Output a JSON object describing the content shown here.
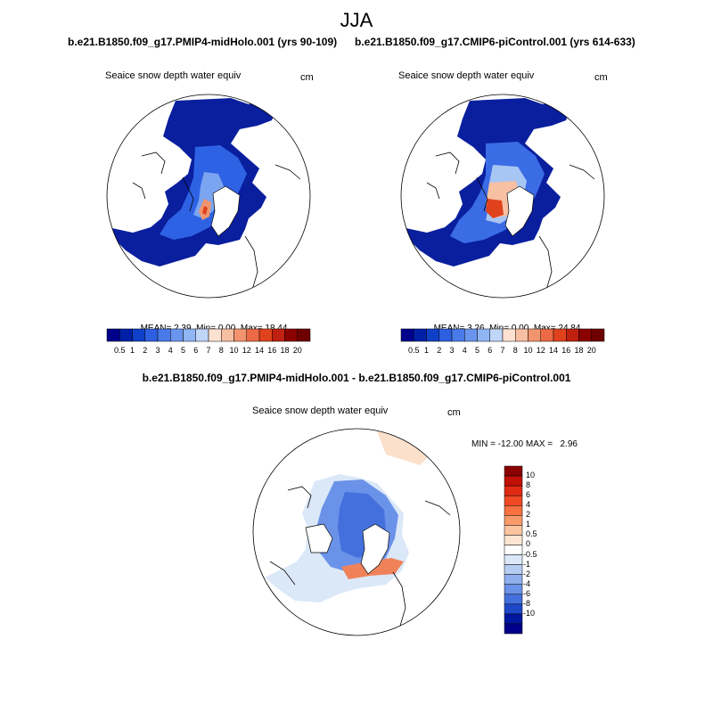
{
  "chart_data": [
    {
      "type": "heatmap",
      "projection": "polar-stereographic",
      "season": "JJA",
      "run": "b.e21.B1850.f09_g17.PMIP4-midHolo.001 (yrs 90-109)",
      "variable": "Seaice snow depth water equiv",
      "units": "cm",
      "stats": {
        "mean": "2.39",
        "min": "0.00",
        "max": "18.44"
      },
      "colorbar": {
        "ticks": [
          "0.5",
          "1",
          "2",
          "3",
          "4",
          "5",
          "6",
          "7",
          "8",
          "10",
          "12",
          "14",
          "16",
          "18",
          "20"
        ],
        "colors": [
          "#00008b",
          "#0020a8",
          "#1040c8",
          "#2d5fe0",
          "#4a7ae8",
          "#6a95ee",
          "#90b5f3",
          "#c0d6f7",
          "#fbe1cf",
          "#f7bfa2",
          "#f2956e",
          "#ec6a45",
          "#e0421e",
          "#c02010",
          "#8b0000",
          "#6e0000"
        ]
      }
    },
    {
      "type": "heatmap",
      "projection": "polar-stereographic",
      "season": "JJA",
      "run": "b.e21.B1850.f09_g17.CMIP6-piControl.001 (yrs 614-633)",
      "variable": "Seaice snow depth water equiv",
      "units": "cm",
      "stats": {
        "mean": "3.26",
        "min": "0.00",
        "max": "24.84"
      },
      "colorbar": {
        "ticks": [
          "0.5",
          "1",
          "2",
          "3",
          "4",
          "5",
          "6",
          "7",
          "8",
          "10",
          "12",
          "14",
          "16",
          "18",
          "20"
        ],
        "colors": [
          "#00008b",
          "#0020a8",
          "#1040c8",
          "#2d5fe0",
          "#4a7ae8",
          "#6a95ee",
          "#90b5f3",
          "#c0d6f7",
          "#fbe1cf",
          "#f7bfa2",
          "#f2956e",
          "#ec6a45",
          "#e0421e",
          "#c02010",
          "#8b0000",
          "#6e0000"
        ]
      }
    },
    {
      "type": "heatmap",
      "projection": "polar-stereographic",
      "title": "b.e21.B1850.f09_g17.PMIP4-midHolo.001 - b.e21.B1850.f09_g17.CMIP6-piControl.001",
      "variable": "Seaice snow depth water equiv",
      "units": "cm",
      "stats_text": "MIN = -12.00 MAX =   2.96",
      "colorbar": {
        "ticks": [
          "10",
          "8",
          "6",
          "4",
          "2",
          "1",
          "0.5",
          "0",
          "-0.5",
          "-1",
          "-2",
          "-4",
          "-6",
          "-8",
          "-10"
        ],
        "colors": [
          "#8b0000",
          "#c01008",
          "#e02a12",
          "#f04a24",
          "#f77040",
          "#fa9a6a",
          "#fcc49e",
          "#fde5d2",
          "#ffffff",
          "#dce8f8",
          "#b6cdf3",
          "#8fb0ee",
          "#6a92e8",
          "#4470de",
          "#1e48c8",
          "#0018a0",
          "#00008b"
        ]
      }
    }
  ],
  "header": {
    "season": "JJA"
  },
  "labels": {
    "stat_mean": "MEAN=",
    "stat_min": "Min=",
    "stat_max": "Max="
  }
}
